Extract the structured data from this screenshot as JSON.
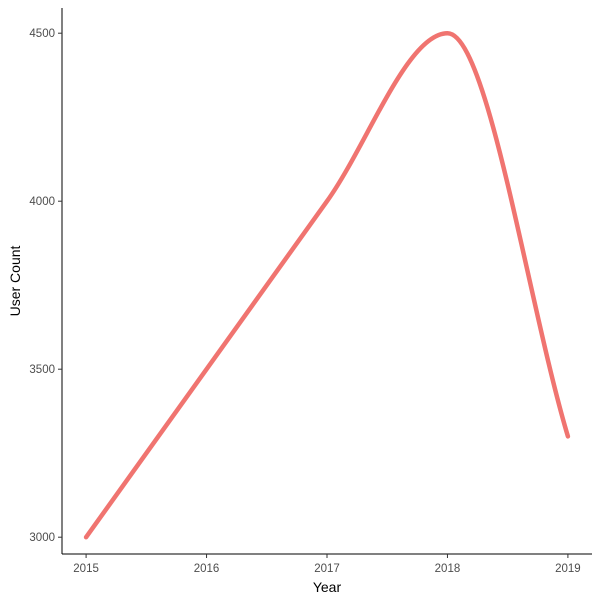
{
  "chart_data": {
    "type": "line",
    "title": "",
    "xlabel": "Year",
    "ylabel": "User Count",
    "x": [
      2015,
      2016,
      2017,
      2018,
      2019
    ],
    "series": [
      {
        "values": [
          3000,
          3500,
          4000,
          4500,
          3300
        ],
        "color": "#f07470"
      }
    ],
    "xlim": [
      2014.8,
      2019.2
    ],
    "ylim": [
      2950,
      4575
    ],
    "x_ticks": [
      "2015",
      "2016",
      "2017",
      "2018",
      "2019"
    ],
    "y_ticks": [
      "3000",
      "3500",
      "4000",
      "4500"
    ],
    "smoothed": true,
    "grid": false,
    "legend": "none"
  }
}
